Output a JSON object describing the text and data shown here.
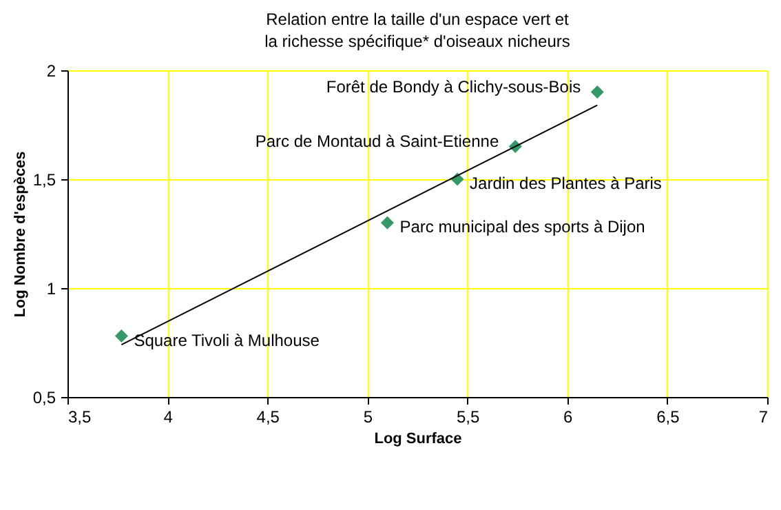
{
  "chart_data": {
    "type": "scatter",
    "title": "Relation entre la taille d'un espace vert et la richesse spécifique* d'oiseaux nicheurs",
    "xlabel": "Log Surface",
    "ylabel": "Log Nombre d'espèces",
    "x": [
      3.77,
      5.1,
      5.45,
      5.74,
      6.15
    ],
    "series": [
      {
        "color": "#339966",
        "marker": "diamond",
        "values": [
          0.78,
          1.3,
          1.5,
          1.65,
          1.9
        ]
      },
      {
        "type": "line",
        "color": "#000000",
        "x": [
          3.77,
          6.15
        ],
        "values": [
          0.74,
          1.84
        ]
      }
    ],
    "annotations": [
      {
        "text": "Square Tivoli à Mulhouse",
        "x": 3.77,
        "y": 0.78
      },
      {
        "text": "Parc municipal des sports à Dijon",
        "x": 5.1,
        "y": 1.3
      },
      {
        "text": "Jardin des Plantes à Paris",
        "x": 5.45,
        "y": 1.5
      },
      {
        "text": "Parc de Montaud à Saint-Etienne",
        "x": 5.74,
        "y": 1.65
      },
      {
        "text": "Forêt de Bondy à Clichy-sous-Bois",
        "x": 6.15,
        "y": 1.9
      }
    ],
    "xlim": [
      3.5,
      7
    ],
    "xticks": [
      {
        "value": 3.5,
        "label": "3,5"
      },
      4,
      {
        "value": 4.5,
        "label": "4,5"
      },
      5,
      {
        "value": 5.5,
        "label": "5,5"
      },
      6,
      {
        "value": 6.5,
        "label": "6,5"
      },
      7
    ],
    "ylim": [
      0.5,
      2
    ],
    "yticks": [
      {
        "value": 0.5,
        "label": "0,5"
      },
      1,
      {
        "value": 1.5,
        "label": "1,5"
      },
      2
    ],
    "grid": true
  }
}
